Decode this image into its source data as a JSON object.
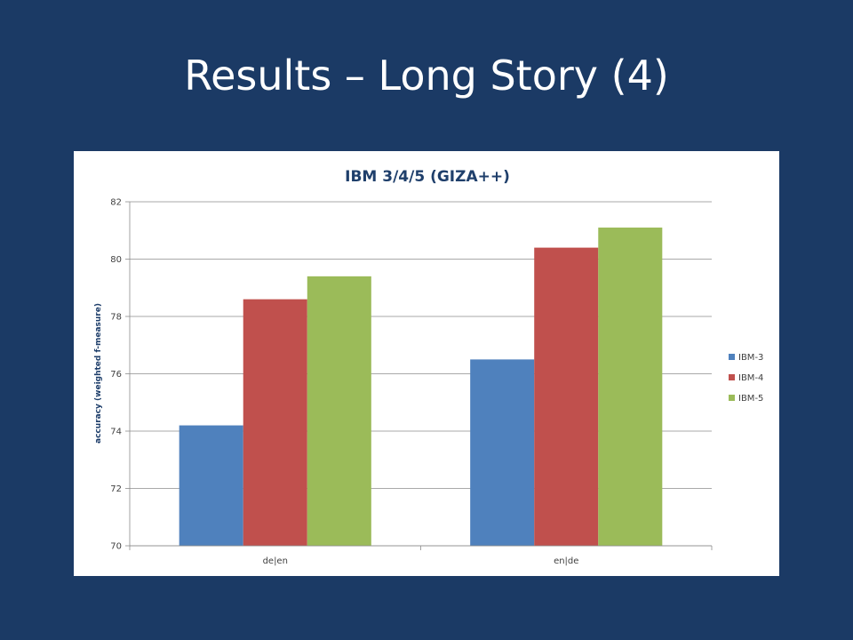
{
  "slide": {
    "title": "Results – Long Story (4)"
  },
  "chart_data": {
    "type": "bar",
    "title": "IBM 3/4/5 (GIZA++)",
    "xlabel": "",
    "ylabel": "accuracy (weighted f-measure)",
    "categories": [
      "de|en",
      "en|de"
    ],
    "ylim": [
      70,
      82
    ],
    "yticks": [
      70,
      72,
      74,
      76,
      78,
      80,
      82
    ],
    "grid": true,
    "legend_position": "right",
    "series": [
      {
        "name": "IBM-3",
        "color": "#4f81bd",
        "values": [
          74.2,
          76.5
        ]
      },
      {
        "name": "IBM-4",
        "color": "#c0504d",
        "values": [
          78.6,
          80.4
        ]
      },
      {
        "name": "IBM-5",
        "color": "#9bbb59",
        "values": [
          79.4,
          81.1
        ]
      }
    ]
  }
}
